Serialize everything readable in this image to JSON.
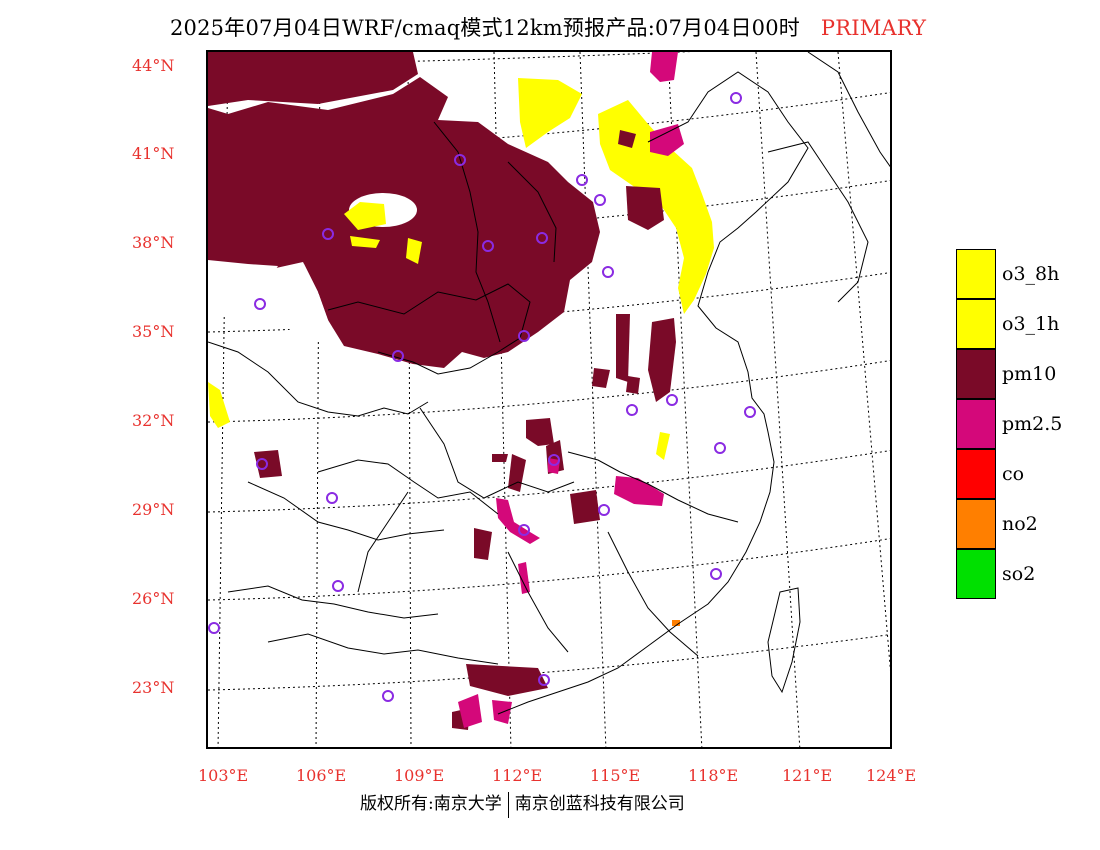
{
  "title": {
    "main": "2025年07月04日WRF/cmaq模式12km预报产品:07月04日00时",
    "tag": "PRIMARY"
  },
  "axes": {
    "lat_labels": [
      "44°N",
      "41°N",
      "38°N",
      "35°N",
      "32°N",
      "29°N",
      "26°N",
      "23°N"
    ],
    "lon_labels": [
      "103°E",
      "106°E",
      "109°E",
      "112°E",
      "115°E",
      "118°E",
      "121°E",
      "124°E"
    ]
  },
  "legend": [
    {
      "label": "o3_8h",
      "color": "#ffff00"
    },
    {
      "label": "o3_1h",
      "color": "#ffff00"
    },
    {
      "label": "pm10",
      "color": "#7a0a28"
    },
    {
      "label": "pm2.5",
      "color": "#d4087a"
    },
    {
      "label": "co",
      "color": "#ff0000"
    },
    {
      "label": "no2",
      "color": "#ff7f00"
    },
    {
      "label": "so2",
      "color": "#00e000"
    }
  ],
  "footer": {
    "left": "版权所有:南京大学",
    "right": "南京创蓝科技有限公司"
  }
}
